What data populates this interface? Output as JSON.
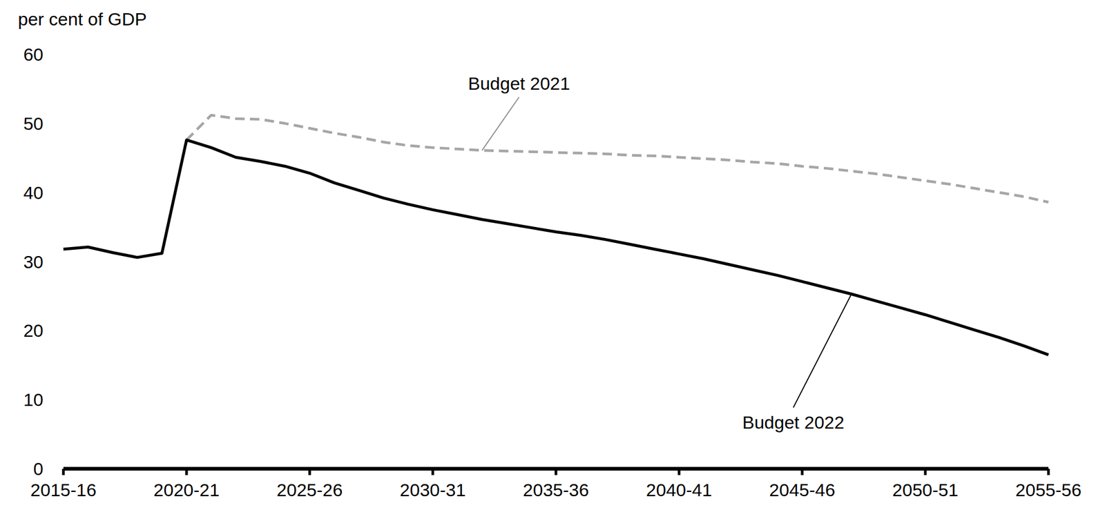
{
  "chart_data": {
    "type": "line",
    "y_label": "per cent of GDP",
    "categories": [
      "2015-16",
      null,
      null,
      null,
      null,
      "2020-21",
      null,
      null,
      null,
      null,
      "2025-26",
      null,
      null,
      null,
      null,
      "2030-31",
      null,
      null,
      null,
      null,
      "2035-36",
      null,
      null,
      null,
      null,
      "2040-41",
      null,
      null,
      null,
      null,
      "2045-46",
      null,
      null,
      null,
      null,
      "2050-51",
      null,
      null,
      null,
      null,
      "2055-56"
    ],
    "series": [
      {
        "name": "Budget 2021",
        "color": "#a6a6a6",
        "line_style": "dashed",
        "values": [
          null,
          null,
          null,
          null,
          null,
          47.6,
          51.2,
          50.7,
          50.6,
          50.0,
          49.3,
          48.6,
          48.0,
          47.3,
          46.8,
          46.5,
          46.3,
          46.1,
          46.0,
          45.9,
          45.8,
          45.7,
          45.6,
          45.4,
          45.3,
          45.1,
          44.9,
          44.7,
          44.4,
          44.2,
          43.8,
          43.5,
          43.1,
          42.7,
          42.2,
          41.7,
          41.2,
          40.6,
          40.0,
          39.4,
          38.6
        ]
      },
      {
        "name": "Budget 2022",
        "color": "#000000",
        "line_style": "solid",
        "values": [
          31.8,
          32.1,
          31.3,
          30.6,
          31.2,
          47.6,
          46.5,
          45.1,
          44.5,
          43.8,
          42.8,
          41.4,
          40.3,
          39.2,
          38.3,
          37.5,
          36.8,
          36.1,
          35.5,
          34.9,
          34.3,
          33.8,
          33.2,
          32.5,
          31.8,
          31.1,
          30.4,
          29.6,
          28.8,
          28.0,
          27.1,
          26.2,
          25.3,
          24.3,
          23.3,
          22.3,
          21.2,
          20.1,
          19.0,
          17.8,
          16.5
        ]
      }
    ],
    "ylim": [
      0,
      60
    ],
    "yticks": [
      0,
      10,
      20,
      30,
      40,
      50,
      60
    ],
    "grid": false
  }
}
